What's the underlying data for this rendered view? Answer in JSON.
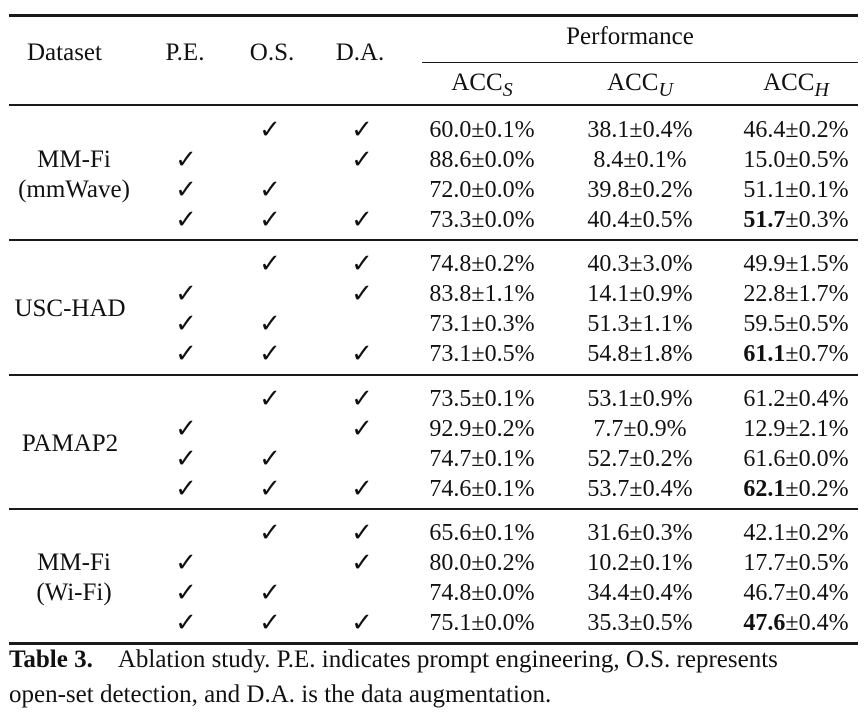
{
  "header": {
    "dataset": "Dataset",
    "pe": "P.E.",
    "os": "O.S.",
    "da": "D.A.",
    "performance": "Performance",
    "acc": "ACC",
    "acc_s_sub": "S",
    "acc_u_sub": "U",
    "acc_h_sub": "H"
  },
  "check_symbol": "✓",
  "groups": [
    {
      "name_line1": "MM-Fi",
      "name_line2": "(mmWave)",
      "rows": [
        {
          "pe": false,
          "os": true,
          "da": true,
          "acc_s": "60.0±0.1%",
          "acc_u": "38.1±0.4%",
          "acc_h_main": "46.4",
          "acc_h_rest": "±0.2%",
          "bold": false
        },
        {
          "pe": true,
          "os": false,
          "da": true,
          "acc_s": "88.6±0.0%",
          "acc_u": "8.4±0.1%",
          "acc_h_main": "15.0",
          "acc_h_rest": "±0.5%",
          "bold": false
        },
        {
          "pe": true,
          "os": true,
          "da": false,
          "acc_s": "72.0±0.0%",
          "acc_u": "39.8±0.2%",
          "acc_h_main": "51.1",
          "acc_h_rest": "±0.1%",
          "bold": false
        },
        {
          "pe": true,
          "os": true,
          "da": true,
          "acc_s": "73.3±0.0%",
          "acc_u": "40.4±0.5%",
          "acc_h_main": "51.7",
          "acc_h_rest": "±0.3%",
          "bold": true
        }
      ]
    },
    {
      "name_line1": "USC-HAD",
      "name_line2": "",
      "rows": [
        {
          "pe": false,
          "os": true,
          "da": true,
          "acc_s": "74.8±0.2%",
          "acc_u": "40.3±3.0%",
          "acc_h_main": "49.9",
          "acc_h_rest": "±1.5%",
          "bold": false
        },
        {
          "pe": true,
          "os": false,
          "da": true,
          "acc_s": "83.8±1.1%",
          "acc_u": "14.1±0.9%",
          "acc_h_main": "22.8",
          "acc_h_rest": "±1.7%",
          "bold": false
        },
        {
          "pe": true,
          "os": true,
          "da": false,
          "acc_s": "73.1±0.3%",
          "acc_u": "51.3±1.1%",
          "acc_h_main": "59.5",
          "acc_h_rest": "±0.5%",
          "bold": false
        },
        {
          "pe": true,
          "os": true,
          "da": true,
          "acc_s": "73.1±0.5%",
          "acc_u": "54.8±1.8%",
          "acc_h_main": "61.1",
          "acc_h_rest": "±0.7%",
          "bold": true
        }
      ]
    },
    {
      "name_line1": "PAMAP2",
      "name_line2": "",
      "rows": [
        {
          "pe": false,
          "os": true,
          "da": true,
          "acc_s": "73.5±0.1%",
          "acc_u": "53.1±0.9%",
          "acc_h_main": "61.2",
          "acc_h_rest": "±0.4%",
          "bold": false
        },
        {
          "pe": true,
          "os": false,
          "da": true,
          "acc_s": "92.9±0.2%",
          "acc_u": "7.7±0.9%",
          "acc_h_main": "12.9",
          "acc_h_rest": "±2.1%",
          "bold": false
        },
        {
          "pe": true,
          "os": true,
          "da": false,
          "acc_s": "74.7±0.1%",
          "acc_u": "52.7±0.2%",
          "acc_h_main": "61.6",
          "acc_h_rest": "±0.0%",
          "bold": false
        },
        {
          "pe": true,
          "os": true,
          "da": true,
          "acc_s": "74.6±0.1%",
          "acc_u": "53.7±0.4%",
          "acc_h_main": "62.1",
          "acc_h_rest": "±0.2%",
          "bold": true
        }
      ]
    },
    {
      "name_line1": "MM-Fi",
      "name_line2": "(Wi-Fi)",
      "rows": [
        {
          "pe": false,
          "os": true,
          "da": true,
          "acc_s": "65.6±0.1%",
          "acc_u": "31.6±0.3%",
          "acc_h_main": "42.1",
          "acc_h_rest": "±0.2%",
          "bold": false
        },
        {
          "pe": true,
          "os": false,
          "da": true,
          "acc_s": "80.0±0.2%",
          "acc_u": "10.2±0.1%",
          "acc_h_main": "17.7",
          "acc_h_rest": "±0.5%",
          "bold": false
        },
        {
          "pe": true,
          "os": true,
          "da": false,
          "acc_s": "74.8±0.0%",
          "acc_u": "34.4±0.4%",
          "acc_h_main": "46.7",
          "acc_h_rest": "±0.4%",
          "bold": false
        },
        {
          "pe": true,
          "os": true,
          "da": true,
          "acc_s": "75.1±0.0%",
          "acc_u": "35.3±0.5%",
          "acc_h_main": "47.6",
          "acc_h_rest": "±0.4%",
          "bold": true
        }
      ]
    }
  ],
  "caption": {
    "label": "Table 3.",
    "line1": "Ablation study. P.E. indicates prompt engineering, O.S. represents",
    "line2": "open-set detection, and D.A. is the data augmentation."
  }
}
